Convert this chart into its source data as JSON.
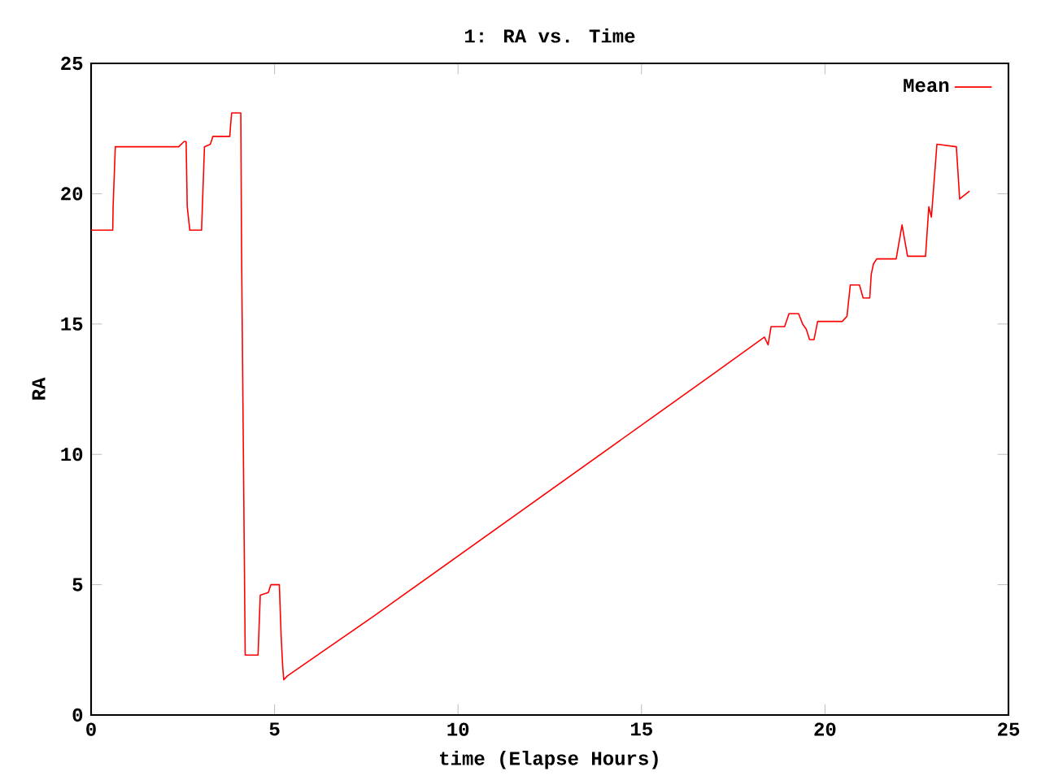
{
  "chart_data": {
    "type": "line",
    "title": "1: RA vs. Time",
    "xlabel": "time (Elapse Hours)",
    "ylabel": "RA",
    "xlim": [
      0,
      25
    ],
    "xticks": [
      0,
      5,
      10,
      15,
      20,
      25
    ],
    "ylim": [
      0,
      25
    ],
    "yticks": [
      0,
      5,
      10,
      15,
      20,
      25
    ],
    "legend": "top right",
    "grid": false,
    "series": [
      {
        "name": "Mean",
        "color": "#ff0000",
        "x": [
          0,
          0.59,
          0.6,
          0.66,
          1.54,
          2.39,
          2.53,
          2.59,
          2.62,
          2.69,
          3.01,
          3.05,
          3.09,
          3.25,
          3.32,
          3.78,
          3.8,
          3.83,
          4.08,
          4.1,
          4.2,
          4.55,
          4.61,
          4.83,
          4.9,
          5.13,
          5.18,
          5.22,
          5.25,
          5.35,
          7.71,
          17.02,
          18.35,
          18.45,
          18.53,
          18.9,
          19.02,
          19.28,
          19.39,
          19.49,
          19.58,
          19.7,
          19.8,
          20.47,
          20.6,
          20.69,
          20.94,
          21.04,
          21.22,
          21.26,
          21.32,
          21.41,
          21.94,
          22.1,
          22.25,
          22.74,
          22.83,
          22.9,
          23.05,
          23.58,
          23.67,
          23.94
        ],
        "values": [
          18.6,
          18.6,
          19.5,
          21.8,
          21.8,
          21.8,
          22.0,
          22.0,
          19.5,
          18.6,
          18.6,
          20.2,
          21.8,
          21.9,
          22.2,
          22.2,
          22.6,
          23.1,
          23.1,
          17.9,
          2.3,
          2.3,
          4.6,
          4.7,
          5.0,
          5.0,
          3.0,
          1.9,
          1.35,
          1.5,
          3.8,
          13.15,
          14.5,
          14.2,
          14.9,
          14.9,
          15.4,
          15.4,
          15.0,
          14.8,
          14.4,
          14.4,
          15.1,
          15.1,
          15.3,
          16.5,
          16.5,
          16.0,
          16.0,
          16.9,
          17.3,
          17.5,
          17.5,
          18.8,
          17.6,
          17.6,
          19.5,
          19.1,
          21.9,
          21.8,
          19.8,
          20.1
        ]
      }
    ]
  }
}
